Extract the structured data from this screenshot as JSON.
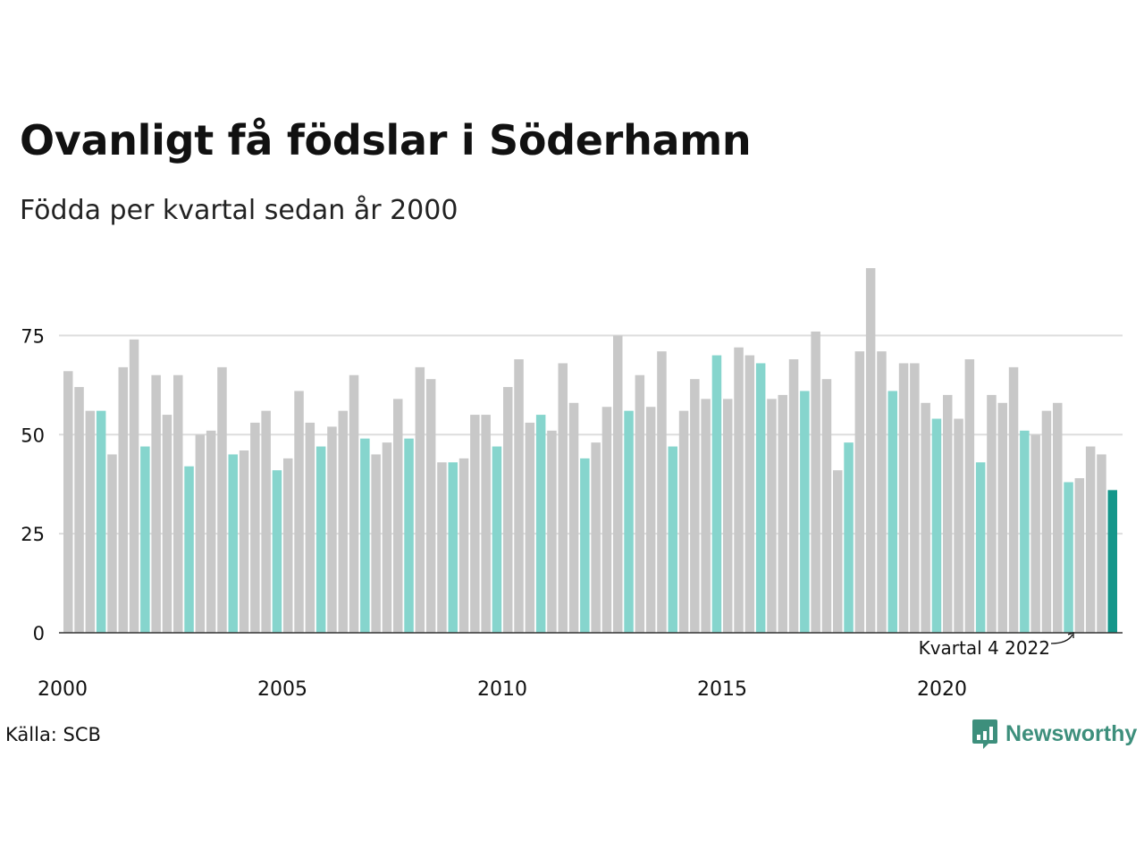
{
  "title": "Ovanligt få födslar i Söderhamn",
  "subtitle": "Födda per kvartal sedan år 2000",
  "source": "Källa: SCB",
  "brand": {
    "name": "Newsworthy",
    "icon": "chart-speech-bubble-icon"
  },
  "colors": {
    "default": "#c8c8c8",
    "q4": "#86d5cd",
    "latest": "#14968a",
    "grid": "#dddddd",
    "axis": "#333333"
  },
  "chart_data": {
    "type": "bar",
    "unit": "Födda per kvartal",
    "x_ticks": [
      "2000",
      "2005",
      "2010",
      "2015",
      "2020"
    ],
    "y_ticks": [
      0,
      25,
      50,
      75
    ],
    "ylim": [
      0,
      92
    ],
    "grid": true,
    "highlight_rule": "kvartal 4",
    "annotation": "Kvartal 4 2022",
    "series": [
      {
        "values": [
          66,
          62,
          56,
          56,
          45,
          67,
          74,
          47,
          65,
          55,
          65,
          42,
          50,
          51,
          67,
          45,
          46,
          53,
          56,
          41,
          44,
          61,
          53,
          47,
          52,
          56,
          65,
          49,
          45,
          48,
          59,
          49,
          67,
          64,
          43,
          43,
          44,
          55,
          55,
          47,
          62,
          69,
          53,
          55,
          51,
          68,
          58,
          44,
          48,
          57,
          75,
          56,
          65,
          57,
          71,
          47,
          56,
          64,
          59,
          70,
          59,
          72,
          70,
          68,
          59,
          60,
          69,
          61,
          76,
          64,
          41,
          48,
          71,
          92,
          71,
          61,
          68,
          68,
          58,
          54,
          60,
          54,
          69,
          43,
          60,
          58,
          67,
          51,
          50,
          56,
          58,
          38,
          39,
          47,
          45,
          36
        ]
      }
    ]
  }
}
